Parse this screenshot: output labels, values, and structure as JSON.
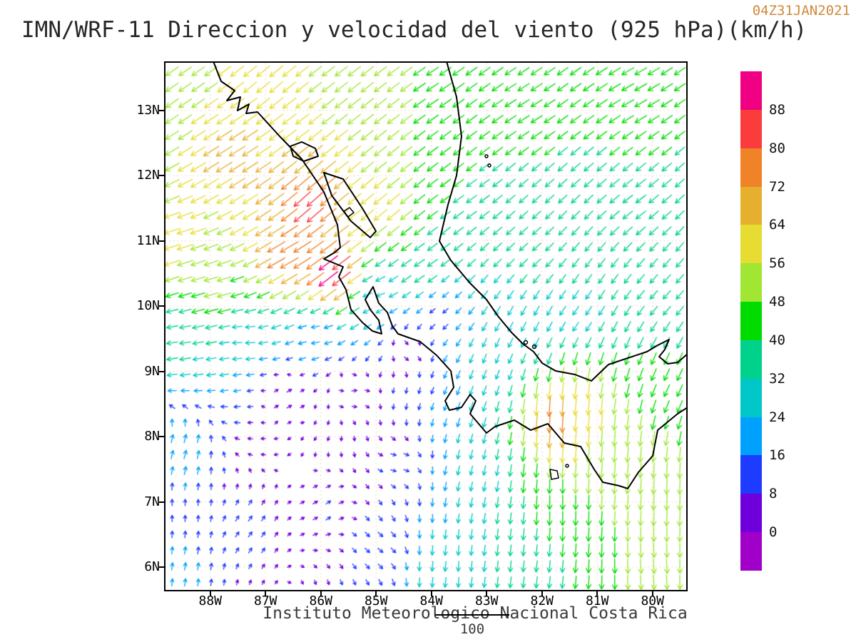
{
  "header": {
    "title": "IMN/WRF-11 Direccion y velocidad del viento (925 hPa)(km/h)",
    "timestamp": "04Z31JAN2021"
  },
  "footer": {
    "caption": "Instituto Meteorologico Nacional Costa Rica",
    "reference_value": "100"
  },
  "colors": {
    "timestamp": "#cf8a3c",
    "coastline": "#000000",
    "frame": "#000000",
    "gridlines": "#d8a868"
  },
  "chart_data": {
    "type": "vector_field",
    "title": "IMN/WRF-11 Direccion y velocidad del viento (925 hPa)(km/h)",
    "timestamp": "04Z31JAN2021",
    "variable": "wind direction and speed",
    "level": "925 hPa",
    "units": "km/h",
    "region": "Costa Rica / Central America",
    "grid_on": true,
    "domain": {
      "lon_west": 88.81,
      "lon_east": 79.39,
      "lat_south": 5.65,
      "lat_north": 13.73
    },
    "y_axis": {
      "ticks": [
        {
          "label": "13N",
          "value": 13
        },
        {
          "label": "12N",
          "value": 12
        },
        {
          "label": "11N",
          "value": 11
        },
        {
          "label": "10N",
          "value": 10
        },
        {
          "label": "9N",
          "value": 9
        },
        {
          "label": "8N",
          "value": 8
        },
        {
          "label": "7N",
          "value": 7
        },
        {
          "label": "6N",
          "value": 6
        }
      ]
    },
    "x_axis": {
      "ticks": [
        {
          "label": "88W",
          "value": 88
        },
        {
          "label": "87W",
          "value": 87
        },
        {
          "label": "86W",
          "value": 86
        },
        {
          "label": "85W",
          "value": 85
        },
        {
          "label": "84W",
          "value": 84
        },
        {
          "label": "83W",
          "value": 83
        },
        {
          "label": "82W",
          "value": 82
        },
        {
          "label": "81W",
          "value": 81
        },
        {
          "label": "80W",
          "value": 80
        }
      ]
    },
    "colorbar": {
      "position": "right",
      "levels": [
        0,
        8,
        16,
        24,
        32,
        40,
        48,
        56,
        64,
        72,
        80,
        88
      ],
      "colors": [
        "#a000c8",
        "#6e00dc",
        "#1e3cff",
        "#00a0ff",
        "#00c8c8",
        "#00d28c",
        "#00dc00",
        "#a0e632",
        "#e6dc32",
        "#e6af2d",
        "#f08228",
        "#fa3c3c",
        "#f00082"
      ]
    },
    "reference_vector": {
      "value": 100,
      "units": "km/h"
    },
    "wind_control_points": [
      {
        "lon": 88.6,
        "lat": 13.4,
        "dir": 235,
        "speed": 52
      },
      {
        "lon": 87.0,
        "lat": 13.5,
        "dir": 230,
        "speed": 60
      },
      {
        "lon": 85.3,
        "lat": 13.2,
        "dir": 232,
        "speed": 55
      },
      {
        "lon": 84.0,
        "lat": 13.4,
        "dir": 236,
        "speed": 48
      },
      {
        "lon": 82.3,
        "lat": 13.1,
        "dir": 238,
        "speed": 44
      },
      {
        "lon": 80.3,
        "lat": 13.3,
        "dir": 240,
        "speed": 46
      },
      {
        "lon": 87.6,
        "lat": 12.3,
        "dir": 238,
        "speed": 68
      },
      {
        "lon": 86.2,
        "lat": 11.6,
        "dir": 228,
        "speed": 85
      },
      {
        "lon": 85.8,
        "lat": 10.5,
        "dir": 232,
        "speed": 95
      },
      {
        "lon": 86.6,
        "lat": 10.8,
        "dir": 240,
        "speed": 78
      },
      {
        "lon": 88.6,
        "lat": 11.0,
        "dir": 252,
        "speed": 60
      },
      {
        "lon": 87.9,
        "lat": 10.2,
        "dir": 255,
        "speed": 50
      },
      {
        "lon": 88.6,
        "lat": 9.4,
        "dir": 262,
        "speed": 34
      },
      {
        "lon": 87.4,
        "lat": 9.5,
        "dir": 268,
        "speed": 26
      },
      {
        "lon": 86.1,
        "lat": 9.6,
        "dir": 262,
        "speed": 20
      },
      {
        "lon": 85.0,
        "lat": 10.15,
        "dir": 250,
        "speed": 25
      },
      {
        "lon": 84.2,
        "lat": 10.6,
        "dir": 235,
        "speed": 40
      },
      {
        "lon": 84.9,
        "lat": 11.5,
        "dir": 230,
        "speed": 60
      },
      {
        "lon": 83.4,
        "lat": 11.6,
        "dir": 235,
        "speed": 40
      },
      {
        "lon": 82.2,
        "lat": 11.0,
        "dir": 228,
        "speed": 34
      },
      {
        "lon": 80.3,
        "lat": 11.6,
        "dir": 232,
        "speed": 40
      },
      {
        "lon": 79.8,
        "lat": 10.2,
        "dir": 222,
        "speed": 34
      },
      {
        "lon": 81.3,
        "lat": 9.9,
        "dir": 215,
        "speed": 30
      },
      {
        "lon": 83.9,
        "lat": 9.9,
        "dir": 230,
        "speed": 14
      },
      {
        "lon": 84.4,
        "lat": 9.3,
        "dir": 120,
        "speed": 8
      },
      {
        "lon": 85.4,
        "lat": 8.7,
        "dir": 85,
        "speed": 8
      },
      {
        "lon": 86.6,
        "lat": 8.6,
        "dir": 60,
        "speed": 9
      },
      {
        "lon": 88.5,
        "lat": 7.8,
        "dir": 15,
        "speed": 24
      },
      {
        "lon": 88.5,
        "lat": 6.0,
        "dir": 8,
        "speed": 18
      },
      {
        "lon": 87.3,
        "lat": 6.6,
        "dir": 35,
        "speed": 12
      },
      {
        "lon": 85.9,
        "lat": 6.9,
        "dir": 55,
        "speed": 9
      },
      {
        "lon": 84.9,
        "lat": 6.3,
        "dir": 130,
        "speed": 14
      },
      {
        "lon": 84.6,
        "lat": 7.6,
        "dir": 100,
        "speed": 10
      },
      {
        "lon": 83.8,
        "lat": 6.0,
        "dir": 185,
        "speed": 30
      },
      {
        "lon": 83.4,
        "lat": 7.5,
        "dir": 192,
        "speed": 26
      },
      {
        "lon": 83.05,
        "lat": 9.0,
        "dir": 200,
        "speed": 26
      },
      {
        "lon": 82.2,
        "lat": 9.6,
        "dir": 208,
        "speed": 30
      },
      {
        "lon": 81.75,
        "lat": 8.3,
        "dir": 183,
        "speed": 78
      },
      {
        "lon": 81.3,
        "lat": 8.35,
        "dir": 185,
        "speed": 60
      },
      {
        "lon": 81.6,
        "lat": 7.0,
        "dir": 180,
        "speed": 48
      },
      {
        "lon": 82.5,
        "lat": 6.2,
        "dir": 186,
        "speed": 34
      },
      {
        "lon": 80.6,
        "lat": 7.8,
        "dir": 184,
        "speed": 55
      },
      {
        "lon": 80.1,
        "lat": 6.0,
        "dir": 176,
        "speed": 50
      },
      {
        "lon": 79.6,
        "lat": 8.8,
        "dir": 205,
        "speed": 42
      },
      {
        "lon": 79.6,
        "lat": 7.2,
        "dir": 182,
        "speed": 55
      }
    ]
  }
}
